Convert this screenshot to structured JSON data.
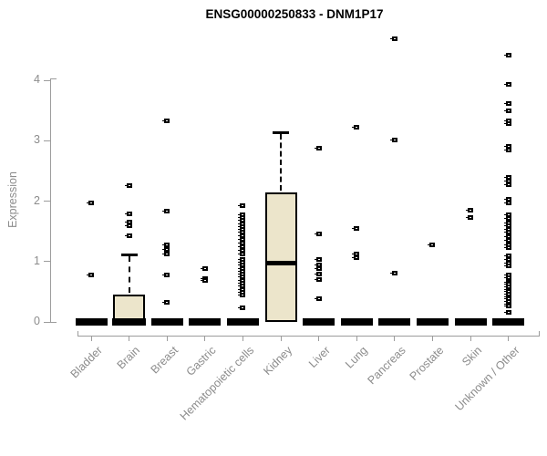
{
  "chart_data": {
    "type": "boxplot",
    "title": "ENSG00000250833 - DNM1P17",
    "ylabel": "Expression",
    "xlabel": "",
    "ylim": [
      0,
      4.75
    ],
    "yticks": [
      0,
      1,
      2,
      3,
      4
    ],
    "grid": false,
    "box_fill": "#ece5cb",
    "stroke": "#000000",
    "axis_color": "#9c9c9c",
    "tick_text_color": "#8c8c8c",
    "categories": [
      "Bladder",
      "Brain",
      "Breast",
      "Gastric",
      "Hematopoietic cells",
      "Kidney",
      "Liver",
      "Lung",
      "Pancreas",
      "Prostate",
      "Skin",
      "Unknown / Other"
    ],
    "boxes": [
      {
        "category": "Bladder",
        "q1": 0,
        "median": 0,
        "q3": 0,
        "whisker_low": 0,
        "whisker_high": 0,
        "outliers": [
          1.97,
          0.78
        ]
      },
      {
        "category": "Brain",
        "q1": 0,
        "median": 0,
        "q3": 0.45,
        "whisker_low": 0,
        "whisker_high": 1.12,
        "outliers": [
          2.26,
          1.79,
          1.66,
          1.6,
          1.42
        ]
      },
      {
        "category": "Breast",
        "q1": 0,
        "median": 0,
        "q3": 0,
        "whisker_low": 0,
        "whisker_high": 0,
        "outliers": [
          3.33,
          1.84,
          1.27,
          1.2,
          1.13,
          0.78,
          0.33
        ]
      },
      {
        "category": "Gastric",
        "q1": 0,
        "median": 0,
        "q3": 0,
        "whisker_low": 0,
        "whisker_high": 0,
        "outliers": [
          0.88,
          0.72,
          0.68
        ]
      },
      {
        "category": "Hematopoietic cells",
        "q1": 0,
        "median": 0,
        "q3": 0,
        "whisker_low": 0,
        "whisker_high": 0,
        "outliers": [
          1.93,
          1.78,
          1.73,
          1.68,
          1.63,
          1.58,
          1.53,
          1.48,
          1.43,
          1.36,
          1.3,
          1.24,
          1.18,
          1.13,
          1.04,
          0.99,
          0.94,
          0.89,
          0.84,
          0.79,
          0.74,
          0.69,
          0.64,
          0.59,
          0.54,
          0.49,
          0.44,
          0.23
        ]
      },
      {
        "category": "Kidney",
        "q1": 0,
        "median": 0.98,
        "q3": 2.15,
        "whisker_low": 0,
        "whisker_high": 3.14,
        "outliers": []
      },
      {
        "category": "Liver",
        "q1": 0,
        "median": 0,
        "q3": 0,
        "whisker_low": 0,
        "whisker_high": 0,
        "outliers": [
          2.88,
          1.45,
          1.03,
          0.95,
          0.88,
          0.8,
          0.7,
          0.38
        ]
      },
      {
        "category": "Lung",
        "q1": 0,
        "median": 0,
        "q3": 0,
        "whisker_low": 0,
        "whisker_high": 0,
        "outliers": [
          3.23,
          1.55,
          1.13,
          1.07
        ]
      },
      {
        "category": "Pancreas",
        "q1": 0,
        "median": 0,
        "q3": 0,
        "whisker_low": 0,
        "whisker_high": 0,
        "outliers": [
          4.68,
          3.01,
          0.81
        ]
      },
      {
        "category": "Prostate",
        "q1": 0,
        "median": 0,
        "q3": 0,
        "whisker_low": 0,
        "whisker_high": 0,
        "outliers": [
          1.28
        ]
      },
      {
        "category": "Skin",
        "q1": 0,
        "median": 0,
        "q3": 0,
        "whisker_low": 0,
        "whisker_high": 0,
        "outliers": [
          1.85,
          1.73
        ]
      },
      {
        "category": "Unknown / Other",
        "q1": 0,
        "median": 0,
        "q3": 0,
        "whisker_low": 0,
        "whisker_high": 0,
        "outliers": [
          4.41,
          3.93,
          3.62,
          3.5,
          3.33,
          3.28,
          2.9,
          2.85,
          2.4,
          2.33,
          2.27,
          2.03,
          1.97,
          1.78,
          1.71,
          1.64,
          1.59,
          1.53,
          1.48,
          1.41,
          1.35,
          1.28,
          1.23,
          1.1,
          1.04,
          0.98,
          0.93,
          0.78,
          0.73,
          0.66,
          0.62,
          0.58,
          0.54,
          0.5,
          0.46,
          0.42,
          0.38,
          0.34,
          0.3,
          0.26,
          0.16
        ]
      }
    ]
  }
}
